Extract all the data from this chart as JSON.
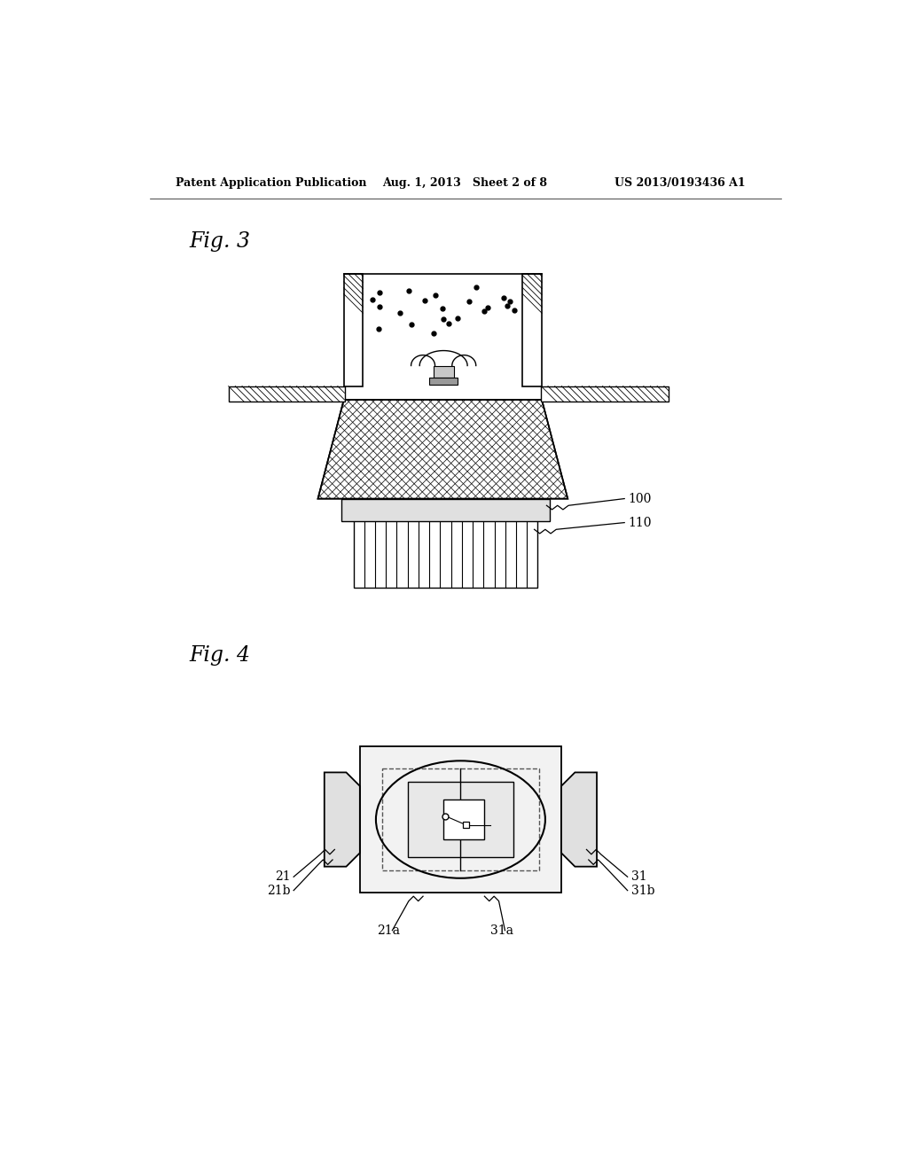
{
  "bg_color": "#ffffff",
  "header_left": "Patent Application Publication",
  "header_mid": "Aug. 1, 2013   Sheet 2 of 8",
  "header_right": "US 2013/0193436 A1",
  "fig3_label": "Fig. 3",
  "fig4_label": "Fig. 4",
  "label_100": "100",
  "label_110": "110",
  "label_21": "21",
  "label_21a": "21a",
  "label_21b": "21b",
  "label_31": "31",
  "label_31a": "31a",
  "label_31b": "31b"
}
